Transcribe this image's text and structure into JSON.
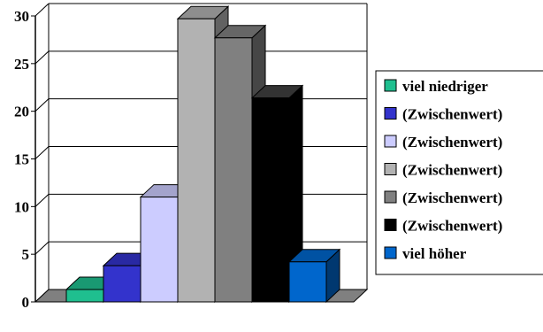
{
  "chart_data": {
    "type": "bar",
    "style": "3d",
    "categories": [],
    "series": [
      {
        "name": "viel niedriger",
        "value": 1.3,
        "color": "#1FBF8F"
      },
      {
        "name": "(Zwischenwert)",
        "value": 3.8,
        "color": "#3333CC"
      },
      {
        "name": "(Zwischenwert)",
        "value": 11.0,
        "color": "#CCCCFF"
      },
      {
        "name": "(Zwischenwert)",
        "value": 29.7,
        "color": "#B2B2B2"
      },
      {
        "name": "(Zwischenwert)",
        "value": 27.7,
        "color": "#808080"
      },
      {
        "name": "(Zwischenwert)",
        "value": 21.4,
        "color": "#000000"
      },
      {
        "name": "viel höher",
        "value": 4.2,
        "color": "#0066CC"
      }
    ],
    "yticks": [
      "0",
      "5",
      "10",
      "15",
      "20",
      "25",
      "30"
    ],
    "ylim": [
      0,
      30
    ],
    "grid": true,
    "legend": "right",
    "title": "",
    "xlabel": "",
    "ylabel": ""
  }
}
